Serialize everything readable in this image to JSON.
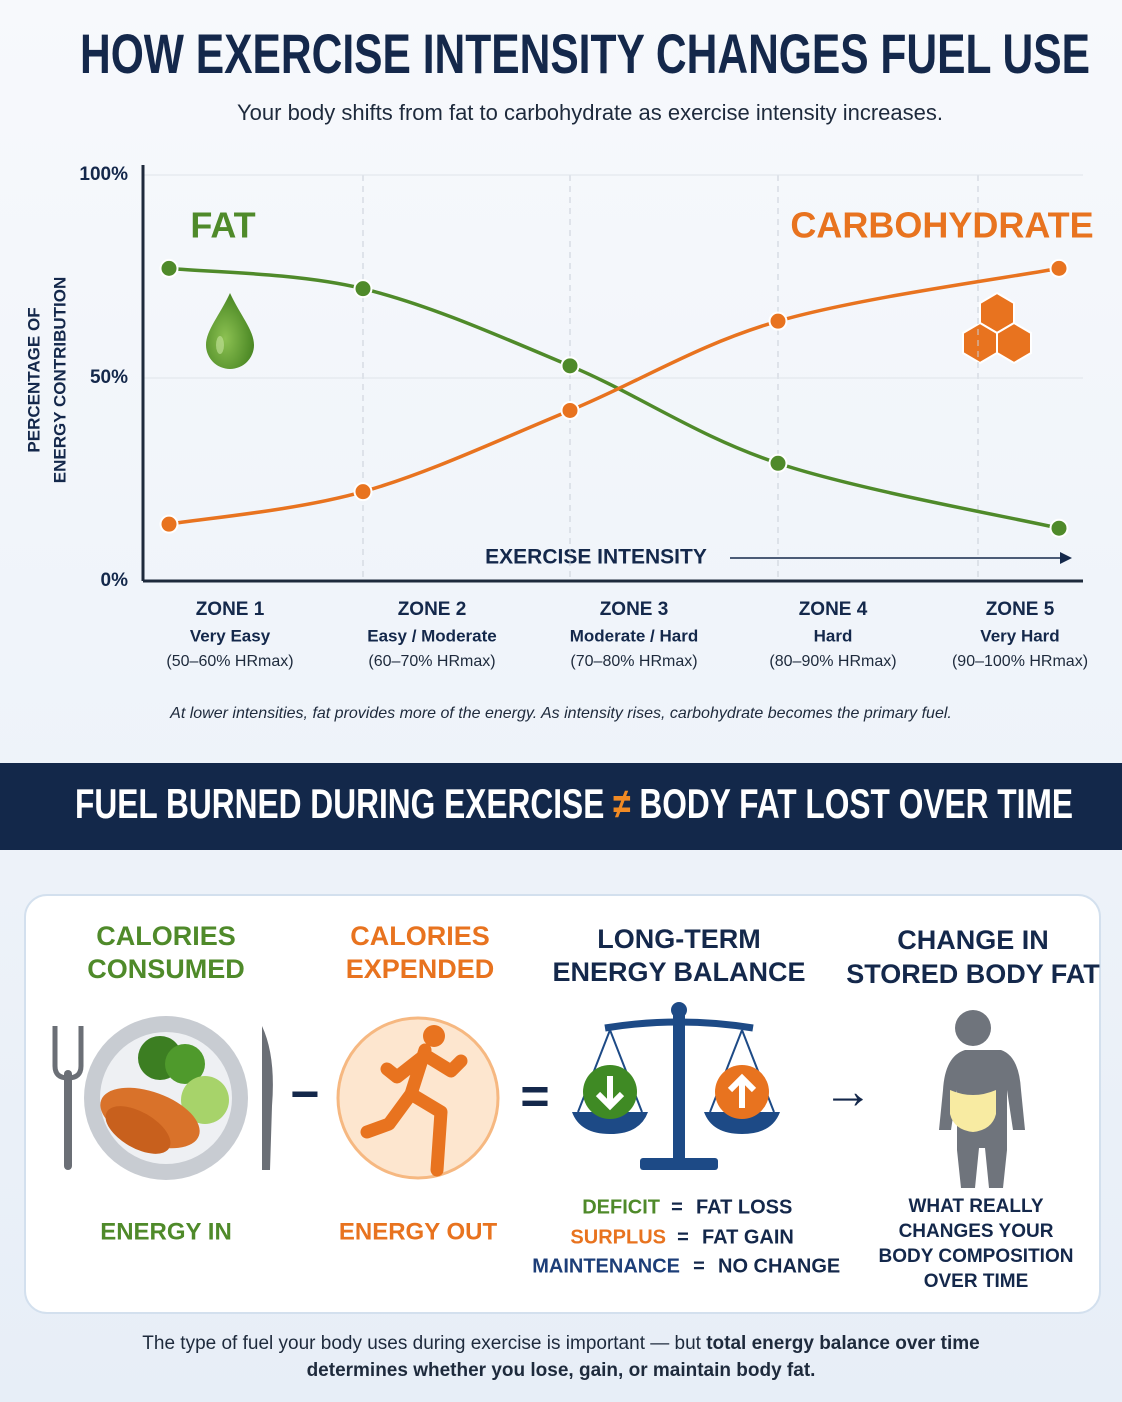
{
  "header": {
    "title": "HOW EXERCISE INTENSITY CHANGES FUEL USE",
    "subtitle": "Your body shifts from fat to carbohydrate as exercise intensity increases."
  },
  "chart_data": {
    "type": "line",
    "ylabel": [
      "PERCENTAGE OF",
      "ENERGY CONTRIBUTION"
    ],
    "categories": [
      "ZONE 1",
      "ZONE 2",
      "ZONE 3",
      "ZONE 4",
      "ZONE 5"
    ],
    "zone_names": [
      "Very Easy",
      "Easy / Moderate",
      "Moderate / Hard",
      "Hard",
      "Very Hard"
    ],
    "zone_ranges": [
      "(50–60% HRmax)",
      "(60–70% HRmax)",
      "(70–80% HRmax)",
      "(80–90% HRmax)",
      "(90–100% HRmax)"
    ],
    "series": [
      {
        "name": "FAT",
        "color": "#4f8a2a",
        "values": [
          77,
          72,
          53,
          29,
          13
        ]
      },
      {
        "name": "CARBOHYDRATE",
        "color": "#e8731f",
        "values": [
          14,
          22,
          42,
          64,
          77
        ]
      }
    ],
    "ylim": [
      0,
      100
    ],
    "yticks": [
      {
        "value": 0,
        "label": "0%"
      },
      {
        "value": 50,
        "label": "50%"
      },
      {
        "value": 100,
        "label": "100%"
      }
    ],
    "grid": true,
    "annotation": "EXERCISE INTENSITY",
    "caption": "At lower intensities, fat provides more of the energy. As intensity rises, carbohydrate becomes the primary fuel."
  },
  "banner": {
    "left": "FUEL BURNED DURING EXERCISE",
    "symbol": "≠",
    "right": "BODY FAT LOST OVER TIME"
  },
  "equation": {
    "consumed": {
      "heading": [
        "CALORIES",
        "CONSUMED"
      ],
      "label": "ENERGY IN"
    },
    "minus": "−",
    "expended": {
      "heading": [
        "CALORIES",
        "EXPENDED"
      ],
      "label": "ENERGY OUT"
    },
    "equals": "=",
    "balance": {
      "heading": [
        "LONG-TERM",
        "ENERGY BALANCE"
      ],
      "rules": [
        {
          "term": "DEFICIT",
          "operator": "=",
          "result": "FAT LOSS"
        },
        {
          "term": "SURPLUS",
          "operator": "=",
          "result": "FAT GAIN"
        },
        {
          "term": "MAINTENANCE",
          "operator": "=",
          "result": "NO CHANGE"
        }
      ]
    },
    "arrow": "→",
    "result": {
      "heading": [
        "CHANGE IN",
        "STORED BODY FAT"
      ],
      "note": [
        "WHAT REALLY",
        "CHANGES YOUR",
        "BODY COMPOSITION",
        "OVER TIME"
      ]
    }
  },
  "footer": {
    "normal": "The type of fuel your body uses during exercise is important — but ",
    "bold_line_1": "total energy balance over time",
    "bold_line_2": "determines whether you lose, gain, or maintain body fat."
  }
}
